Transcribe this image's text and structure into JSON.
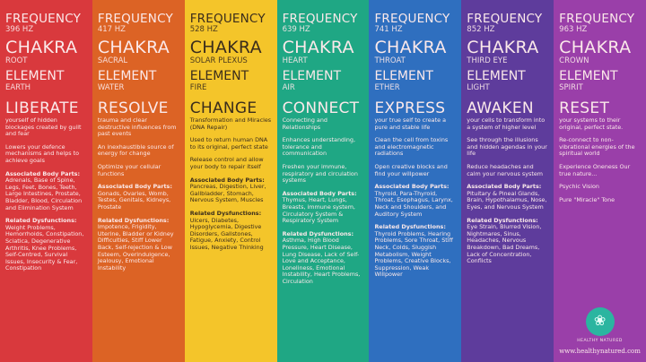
{
  "labels": {
    "frequency": "FREQUENCY",
    "chakra": "CHAKRA",
    "element": "ELEMENT",
    "body_parts": "Associated Body Parts:",
    "dysfunctions": "Related Dysfunctions:"
  },
  "columns": [
    {
      "color": "#d9393d",
      "dark": false,
      "hz": "396 HZ",
      "chakra": "ROOT",
      "element": "EARTH",
      "keyword": "LIBERATE",
      "tagline": "",
      "paragraphs": [
        "yourself of hidden blockages created by guilt and fear",
        "Lowers your defence mechanisms and helps to achieve goals"
      ],
      "body_parts": "Adrenals, Base of Spine, Legs, Feet, Bones, Teeth, Large Intestines, Prostate, Bladder, Blood, Circulation and Elimination System",
      "dysfunctions": "Weight Problems, Hemorrhoids, Constipation, Sciatica, Degenerative Arthritis, Knee Problems, Self-Centred, Survival Issues, Insecurity & Fear, Constipation"
    },
    {
      "color": "#dc6325",
      "dark": false,
      "hz": "417 HZ",
      "chakra": "SACRAL",
      "element": "WATER",
      "keyword": "RESOLVE",
      "tagline": "",
      "paragraphs": [
        "trauma and clear destructive influences from past events",
        "An inexhaustible source of energy for change",
        "Optimize your cellular functions"
      ],
      "body_parts": "Gonads, Ovaries, Womb, Testes, Genitals, Kidneys, Prostate",
      "dysfunctions": "Impotence, Frigidity, Uterine, Bladder or Kidney Difficulties, Stiff Lower Back, Self-rejection & Low Esteem, Overindulgence, Jealousy, Emotional Instability"
    },
    {
      "color": "#f4c52a",
      "dark": true,
      "hz": "528 HZ",
      "chakra": "SOLAR PLEXUS",
      "element": "FIRE",
      "keyword": "CHANGE",
      "tagline": "Transformation and Miracles (DNA Repair)",
      "paragraphs": [
        "Used to return human DNA to its original, perfect state",
        "Release control and allow your body to repair itself"
      ],
      "body_parts": "Pancreas, Digestion, Liver, Gallbladder, Stomach, Nervous System, Muscles",
      "dysfunctions": "Ulcers, Diabetes, Hypoglycemia, Digestive Disorders, Gallstones, Fatigue, Anxiety, Control Issues, Negative Thinking"
    },
    {
      "color": "#1fa784",
      "dark": false,
      "hz": "639 HZ",
      "chakra": "HEART",
      "element": "AIR",
      "keyword": "CONNECT",
      "tagline": "Connecting and Relationships",
      "paragraphs": [
        "Enhances understanding, tolerance and communication",
        "Freshen your immune, respiratory and circulation systems"
      ],
      "body_parts": "Thymus, Heart, Lungs, Breasts, immune system, Circulatory System & Respiratory System",
      "dysfunctions": "Asthma, High Blood Pressure, Heart Disease, Lung Disease, Lack of Self-Love and Acceptance, Loneliness, Emotional Instability, Heart Problems, Circulation"
    },
    {
      "color": "#2f6fbf",
      "dark": false,
      "hz": "741 HZ",
      "chakra": "THROAT",
      "element": "ETHER",
      "keyword": "EXPRESS",
      "tagline": "",
      "paragraphs": [
        "your true self to create a pure and stable life",
        "Clean the cell from toxins and electromagnetic radiations",
        "Open creative blocks and find your willpower"
      ],
      "body_parts": "Thyroid, Para-Thyroid, Throat, Esophagus, Larynx, Neck and Shoulders, and Auditory System",
      "dysfunctions": "Thyroid Problems, Hearing Problems, Sore Throat, Stiff Neck, Colds, Sluggish Metabolism, Weight Problems, Creative Blocks, Suppression, Weak Willpower"
    },
    {
      "color": "#5e3c9c",
      "dark": false,
      "hz": "852 HZ",
      "chakra": "THIRD EYE",
      "element": "LIGHT",
      "keyword": "AWAKEN",
      "tagline": "",
      "paragraphs": [
        "your cells to transform into a system of higher level",
        "See through the illusions and hidden agendas in your life",
        "Reduce headaches and calm your nervous system"
      ],
      "body_parts": "Pituitary & Pineal Glands, Brain, Hypothalamus, Nose, Eyes, and Nervous System",
      "dysfunctions": "Eye Strain, Blurred Vision, Nightmares, Sinus, Headaches, Nervous Breakdown, Bad Dreams, Lack of Concentration, Conflicts"
    },
    {
      "color": "#9a3fa9",
      "dark": false,
      "hz": "963 HZ",
      "chakra": "CROWN",
      "element": "SPIRIT",
      "keyword": "RESET",
      "tagline": "",
      "paragraphs": [
        "your systems to their original, perfect state.",
        "Re-connect to non-vibrational energies of the spiritual world",
        "Experience Oneness Our true nature...",
        "Psychic Vision",
        "Pure \"Miracle\" Tone"
      ],
      "body_parts": "",
      "dysfunctions": ""
    }
  ],
  "logo": {
    "name": "HEALTHY NATURED",
    "icon": "lotus-icon",
    "url": "www.healthynatured.com"
  }
}
